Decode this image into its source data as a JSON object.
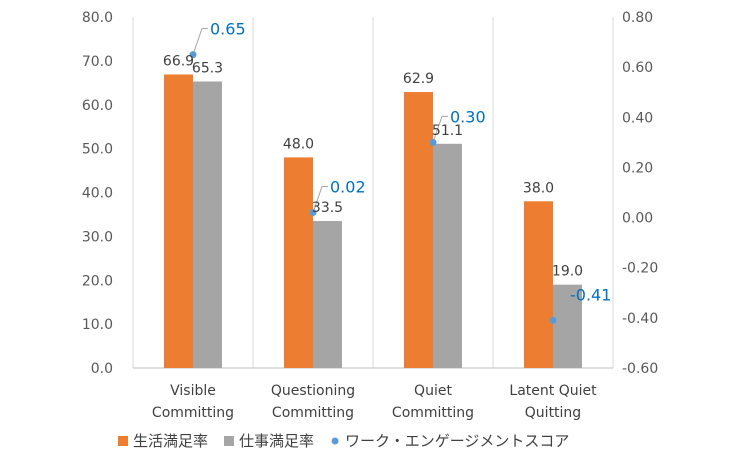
{
  "chart_data": {
    "type": "bar",
    "categories": [
      [
        "Visible",
        "Committing"
      ],
      [
        "Questioning",
        "Committing"
      ],
      [
        "Quiet",
        "Committing"
      ],
      [
        "Latent Quiet",
        "Quitting"
      ]
    ],
    "series": [
      {
        "name": "生活満足率",
        "axis": "left",
        "color": "#ed7d31",
        "values": [
          66.9,
          48.0,
          62.9,
          38.0
        ],
        "labels": [
          "66.9",
          "48.0",
          "62.9",
          "38.0"
        ]
      },
      {
        "name": "仕事満足率",
        "axis": "left",
        "color": "#a5a5a5",
        "values": [
          65.3,
          33.5,
          51.1,
          19.0
        ],
        "labels": [
          "65.3",
          "33.5",
          "51.1",
          "19.0"
        ]
      },
      {
        "name": "ワーク・エンゲージメントスコア",
        "axis": "right",
        "type": "scatter",
        "color": "#5b9bd5",
        "label_color": "#0070c0",
        "values": [
          0.65,
          0.02,
          0.3,
          -0.41
        ],
        "labels": [
          "0.65",
          "0.02",
          "0.30",
          "-0.41"
        ]
      }
    ],
    "y_left": {
      "min": 0,
      "max": 80,
      "ticks": [
        "0.0",
        "10.0",
        "20.0",
        "30.0",
        "40.0",
        "50.0",
        "60.0",
        "70.0",
        "80.0"
      ]
    },
    "y_right": {
      "min": -0.6,
      "max": 0.8,
      "ticks": [
        "-0.60",
        "-0.40",
        "-0.20",
        "0.00",
        "0.20",
        "0.40",
        "0.60",
        "0.80"
      ]
    },
    "grid": "vertical-category-separators",
    "legend": "bottom"
  }
}
